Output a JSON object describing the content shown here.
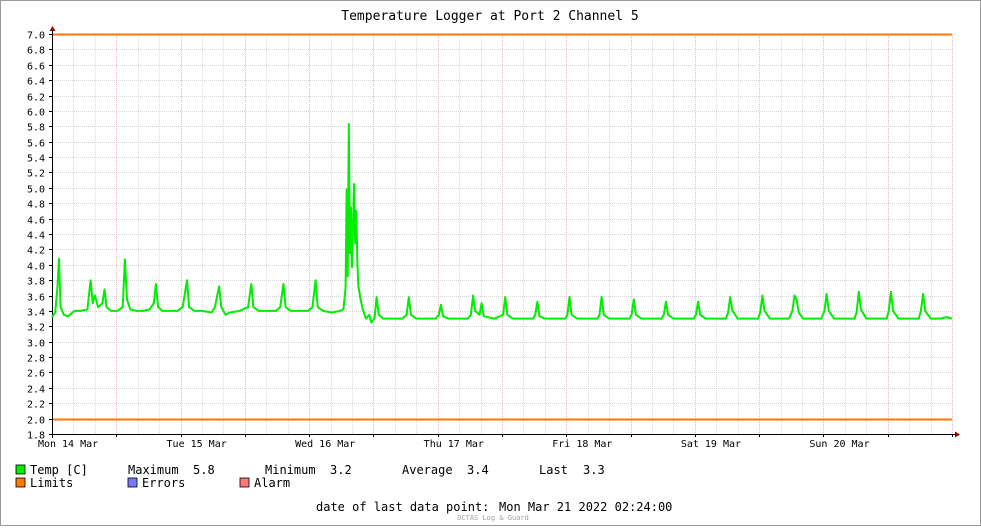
{
  "chart_data": {
    "type": "line",
    "title": "Temperature Logger at Port 2 Channel 5",
    "ylim": [
      1.8,
      7.0
    ],
    "y_ticks": [
      "7.0",
      "6.8",
      "6.6",
      "6.4",
      "6.2",
      "6.0",
      "5.8",
      "5.6",
      "5.4",
      "5.2",
      "5.0",
      "4.8",
      "4.6",
      "4.4",
      "4.2",
      "4.0",
      "3.8",
      "3.6",
      "3.4",
      "3.2",
      "3.0",
      "2.8",
      "2.6",
      "2.4",
      "2.2",
      "2.0",
      "1.8"
    ],
    "x_range_hours": [
      0,
      168
    ],
    "x_ticks": [
      {
        "label": "Mon 14 Mar",
        "hour": 3
      },
      {
        "label": "Tue 15 Mar",
        "hour": 27
      },
      {
        "label": "Wed 16 Mar",
        "hour": 51
      },
      {
        "label": "Thu 17 Mar",
        "hour": 75
      },
      {
        "label": "Fri 18 Mar",
        "hour": 99
      },
      {
        "label": "Sat 19 Mar",
        "hour": 123
      },
      {
        "label": "Sun 20 Mar",
        "hour": 147
      }
    ],
    "grid": true,
    "limits": {
      "upper": 7.0,
      "lower": 2.0,
      "color": "#ff7700"
    },
    "series": [
      {
        "name": "Temp [C]",
        "color": "#00ee00",
        "points": [
          [
            0,
            3.32
          ],
          [
            0.6,
            3.38
          ],
          [
            1.0,
            3.7
          ],
          [
            1.3,
            4.08
          ],
          [
            1.6,
            3.45
          ],
          [
            2.2,
            3.35
          ],
          [
            3.0,
            3.33
          ],
          [
            4.2,
            3.4
          ],
          [
            5.4,
            3.4
          ],
          [
            6.6,
            3.42
          ],
          [
            7.2,
            3.8
          ],
          [
            7.6,
            3.5
          ],
          [
            8.0,
            3.6
          ],
          [
            8.6,
            3.45
          ],
          [
            9.4,
            3.5
          ],
          [
            9.8,
            3.68
          ],
          [
            10.2,
            3.45
          ],
          [
            11.0,
            3.4
          ],
          [
            12.2,
            3.4
          ],
          [
            13.2,
            3.45
          ],
          [
            13.6,
            4.07
          ],
          [
            14.0,
            3.55
          ],
          [
            14.6,
            3.42
          ],
          [
            15.8,
            3.4
          ],
          [
            17.0,
            3.4
          ],
          [
            18.2,
            3.42
          ],
          [
            19.0,
            3.5
          ],
          [
            19.4,
            3.75
          ],
          [
            19.8,
            3.45
          ],
          [
            20.6,
            3.4
          ],
          [
            22.0,
            3.4
          ],
          [
            23.4,
            3.4
          ],
          [
            24.4,
            3.45
          ],
          [
            25.2,
            3.8
          ],
          [
            25.6,
            3.45
          ],
          [
            26.6,
            3.4
          ],
          [
            28.0,
            3.4
          ],
          [
            29.8,
            3.38
          ],
          [
            30.4,
            3.45
          ],
          [
            31.2,
            3.72
          ],
          [
            31.6,
            3.45
          ],
          [
            32.4,
            3.35
          ],
          [
            33.2,
            3.38
          ],
          [
            35.0,
            3.4
          ],
          [
            36.6,
            3.45
          ],
          [
            37.2,
            3.75
          ],
          [
            37.6,
            3.45
          ],
          [
            38.6,
            3.4
          ],
          [
            40.2,
            3.4
          ],
          [
            41.8,
            3.4
          ],
          [
            42.6,
            3.45
          ],
          [
            43.2,
            3.75
          ],
          [
            43.6,
            3.45
          ],
          [
            44.6,
            3.4
          ],
          [
            46.2,
            3.4
          ],
          [
            47.8,
            3.4
          ],
          [
            48.6,
            3.45
          ],
          [
            49.2,
            3.8
          ],
          [
            49.6,
            3.45
          ],
          [
            50.6,
            3.4
          ],
          [
            52.2,
            3.38
          ],
          [
            53.8,
            3.4
          ],
          [
            54.4,
            3.42
          ],
          [
            54.8,
            3.7
          ],
          [
            55.0,
            4.98
          ],
          [
            55.2,
            3.85
          ],
          [
            55.4,
            5.83
          ],
          [
            55.6,
            4.15
          ],
          [
            55.8,
            4.75
          ],
          [
            56.0,
            3.97
          ],
          [
            56.2,
            4.5
          ],
          [
            56.4,
            5.05
          ],
          [
            56.6,
            4.28
          ],
          [
            56.8,
            4.7
          ],
          [
            57.0,
            4.0
          ],
          [
            57.2,
            3.72
          ],
          [
            57.6,
            3.55
          ],
          [
            58.0,
            3.42
          ],
          [
            58.6,
            3.3
          ],
          [
            59.2,
            3.35
          ],
          [
            59.6,
            3.25
          ],
          [
            60.2,
            3.3
          ],
          [
            60.6,
            3.58
          ],
          [
            61.0,
            3.35
          ],
          [
            61.8,
            3.3
          ],
          [
            63.6,
            3.3
          ],
          [
            65.4,
            3.3
          ],
          [
            66.2,
            3.35
          ],
          [
            66.6,
            3.58
          ],
          [
            67.0,
            3.35
          ],
          [
            68.0,
            3.3
          ],
          [
            70.0,
            3.3
          ],
          [
            71.6,
            3.3
          ],
          [
            72.2,
            3.35
          ],
          [
            72.6,
            3.48
          ],
          [
            73.0,
            3.33
          ],
          [
            74.0,
            3.3
          ],
          [
            76.2,
            3.3
          ],
          [
            77.6,
            3.3
          ],
          [
            78.2,
            3.35
          ],
          [
            78.6,
            3.6
          ],
          [
            79.0,
            3.4
          ],
          [
            79.8,
            3.35
          ],
          [
            80.2,
            3.5
          ],
          [
            80.6,
            3.33
          ],
          [
            82.6,
            3.3
          ],
          [
            84.2,
            3.35
          ],
          [
            84.6,
            3.58
          ],
          [
            85.0,
            3.35
          ],
          [
            86.0,
            3.3
          ],
          [
            88.2,
            3.3
          ],
          [
            89.8,
            3.3
          ],
          [
            90.2,
            3.35
          ],
          [
            90.6,
            3.52
          ],
          [
            91.0,
            3.33
          ],
          [
            92.0,
            3.3
          ],
          [
            94.2,
            3.3
          ],
          [
            95.8,
            3.3
          ],
          [
            96.2,
            3.35
          ],
          [
            96.6,
            3.58
          ],
          [
            97.0,
            3.35
          ],
          [
            98.0,
            3.3
          ],
          [
            100.2,
            3.3
          ],
          [
            101.8,
            3.3
          ],
          [
            102.2,
            3.35
          ],
          [
            102.6,
            3.58
          ],
          [
            103.0,
            3.35
          ],
          [
            104.0,
            3.3
          ],
          [
            106.2,
            3.3
          ],
          [
            107.8,
            3.3
          ],
          [
            108.2,
            3.35
          ],
          [
            108.6,
            3.55
          ],
          [
            109.0,
            3.35
          ],
          [
            110.0,
            3.3
          ],
          [
            112.2,
            3.3
          ],
          [
            113.8,
            3.3
          ],
          [
            114.2,
            3.35
          ],
          [
            114.6,
            3.52
          ],
          [
            115.0,
            3.35
          ],
          [
            116.0,
            3.3
          ],
          [
            118.2,
            3.3
          ],
          [
            119.8,
            3.3
          ],
          [
            120.2,
            3.35
          ],
          [
            120.6,
            3.52
          ],
          [
            121.0,
            3.35
          ],
          [
            122.0,
            3.3
          ],
          [
            124.2,
            3.3
          ],
          [
            125.8,
            3.3
          ],
          [
            126.2,
            3.38
          ],
          [
            126.6,
            3.58
          ],
          [
            127.0,
            3.4
          ],
          [
            128.0,
            3.3
          ],
          [
            130.2,
            3.3
          ],
          [
            131.8,
            3.3
          ],
          [
            132.2,
            3.38
          ],
          [
            132.6,
            3.6
          ],
          [
            133.0,
            3.4
          ],
          [
            134.0,
            3.3
          ],
          [
            136.2,
            3.3
          ],
          [
            137.6,
            3.3
          ],
          [
            138.2,
            3.4
          ],
          [
            138.6,
            3.6
          ],
          [
            139.0,
            3.55
          ],
          [
            139.4,
            3.38
          ],
          [
            140.2,
            3.3
          ],
          [
            142.2,
            3.3
          ],
          [
            143.6,
            3.3
          ],
          [
            144.2,
            3.4
          ],
          [
            144.6,
            3.62
          ],
          [
            145.0,
            3.4
          ],
          [
            146.0,
            3.3
          ],
          [
            148.2,
            3.3
          ],
          [
            149.8,
            3.3
          ],
          [
            150.2,
            3.38
          ],
          [
            150.6,
            3.65
          ],
          [
            151.0,
            3.42
          ],
          [
            152.0,
            3.3
          ],
          [
            154.2,
            3.3
          ],
          [
            155.8,
            3.3
          ],
          [
            156.2,
            3.4
          ],
          [
            156.6,
            3.65
          ],
          [
            157.0,
            3.4
          ],
          [
            158.0,
            3.3
          ],
          [
            160.2,
            3.3
          ],
          [
            161.8,
            3.3
          ],
          [
            162.2,
            3.4
          ],
          [
            162.6,
            3.62
          ],
          [
            163.0,
            3.4
          ],
          [
            164.0,
            3.3
          ],
          [
            165.8,
            3.3
          ],
          [
            167.0,
            3.32
          ],
          [
            168,
            3.3
          ]
        ]
      }
    ]
  },
  "legend": {
    "temp": {
      "label": "Temp [C]",
      "color": "#00ee00"
    },
    "maximum_label": "Maximum",
    "maximum_value": "5.8",
    "minimum_label": "Minimum",
    "minimum_value": "3.2",
    "average_label": "Average",
    "average_value": "3.4",
    "last_label": "Last",
    "last_value": "3.3",
    "limits": {
      "label": "Limits",
      "color": "#ff7700"
    },
    "errors": {
      "label": "Errors",
      "color": "#7777ff"
    },
    "alarm": {
      "label": "Alarm",
      "color": "#ff7777"
    }
  },
  "footer": {
    "date_label": "date of last data point:",
    "date_value": "Mon Mar 21 2022 02:24:00",
    "credit": "OCTAS Log & Guard"
  }
}
